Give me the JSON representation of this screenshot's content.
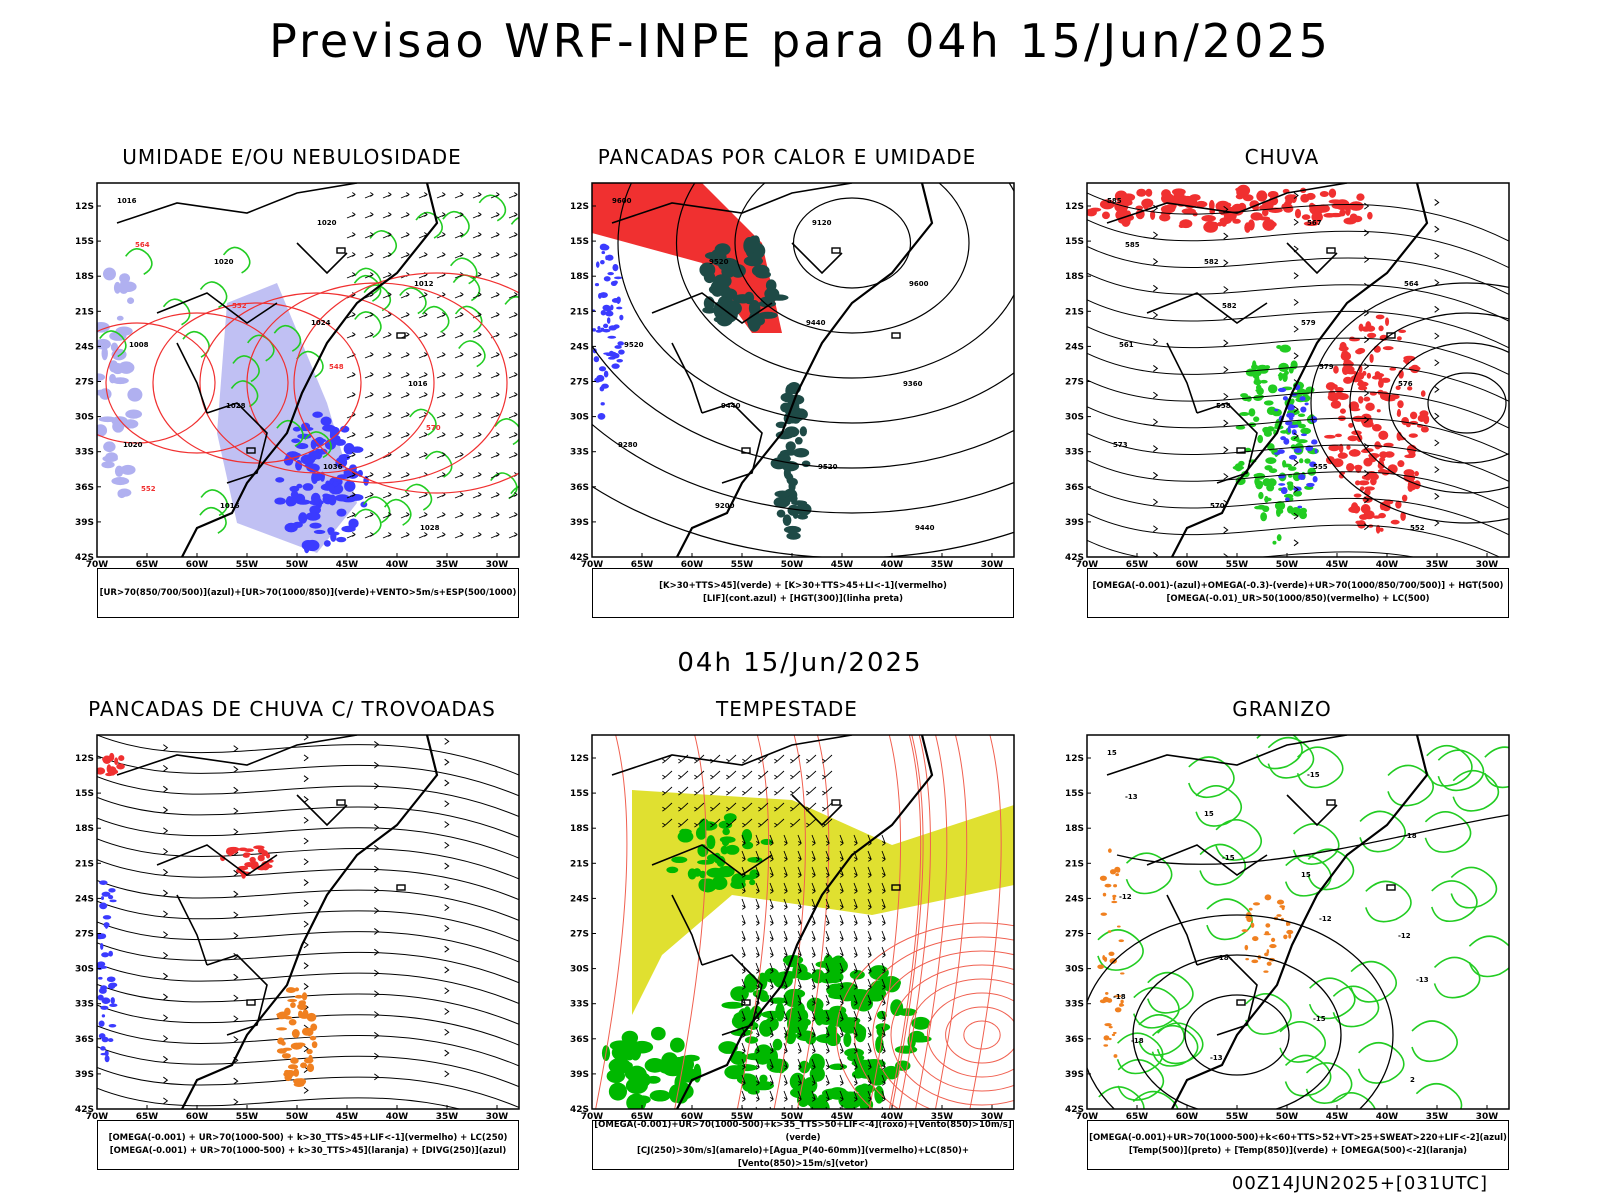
{
  "header": {
    "title": "Previsao WRF-INPE  para 04h 15/Jun/2025",
    "middle_time": "04h 15/Jun/2025",
    "footer": "00Z14JUN2025+[031UTC]"
  },
  "axes": {
    "lat_labels": [
      "12S",
      "15S",
      "18S",
      "21S",
      "24S",
      "27S",
      "30S",
      "33S",
      "36S",
      "39S",
      "42S"
    ],
    "lon_labels": [
      "70W",
      "65W",
      "60W",
      "55W",
      "50W",
      "45W",
      "40W",
      "35W",
      "30W"
    ]
  },
  "panels": [
    {
      "title": "UMIDADE E/OU NEBULOSIDADE",
      "legend": [
        "[UR>70(850/700/500)](azul)+[UR>70(1000/850)](verde)+VENTO>5m/s+ESP(500/1000)"
      ],
      "contour_labels": [
        "1016",
        "1020",
        "1024",
        "1016",
        "1020",
        "1016",
        "1020",
        "1012",
        "1008",
        "1028",
        "1036",
        "1028",
        "564",
        "552",
        "548",
        "570",
        "552"
      ]
    },
    {
      "title": "PANCADAS POR CALOR E UMIDADE",
      "legend": [
        "[K>30+TTS>45](verde) + [K>30+TTS>45+LI<-1](vermelho)",
        "[LIF](cont.azul) + [HGT(300)](linha preta)"
      ],
      "contour_labels": [
        "9600",
        "9520",
        "9440",
        "9360",
        "9280",
        "9200",
        "9120",
        "9600",
        "9520",
        "9440",
        "9520",
        "9440"
      ]
    },
    {
      "title": "CHUVA",
      "legend": [
        "[OMEGA(-0.001)-(azul)+OMEGA(-0.3)-(verde)+UR>70(1000/850/700/500)] + HGT(500)",
        "[OMEGA(-0.01)_UR>50(1000/850)(vermelho) + LC(500)"
      ],
      "contour_labels": [
        "585",
        "582",
        "579",
        "576",
        "573",
        "570",
        "567",
        "564",
        "561",
        "558",
        "555",
        "552",
        "585",
        "582",
        "579"
      ]
    },
    {
      "title": "PANCADAS DE CHUVA C/ TROVOADAS",
      "legend": [
        "[OMEGA(-0.001) + UR>70(1000-500) + k>30_TTS>45+LIF<-1](vermelho) + LC(250)",
        "[OMEGA(-0.001) + UR>70(1000-500) + k>30_TTS>45](laranja) + [DIVG(250)](azul)"
      ],
      "contour_labels": []
    },
    {
      "title": "TEMPESTADE",
      "legend": [
        "[OMEGA(-0.001)+UR>70(1000-500)+k>35_TTS>50+LIF<-4](roxo)+[Vento(850)>10m/s](verde)",
        "[CJ(250)>30m/s](amarelo)+[Agua_P(40-60mm)](vermelho)+LC(850)+[Vento(850)>15m/s](vetor)"
      ],
      "contour_labels": []
    },
    {
      "title": "GRANIZO",
      "legend": [
        "[OMEGA(-0.001)+UR>70(1000-500)+k<60+TTS>52+VT>25+SWEAT>220+LIF<-2](azul)",
        "[Temp(500)](preto) + [Temp(850)](verde) + [OMEGA(500)<-2](laranja)"
      ],
      "contour_labels": [
        "15",
        "15",
        "15",
        "-12",
        "-18",
        "-13",
        "-15",
        "-18",
        "-12",
        "-18",
        "-15",
        "2",
        "-13",
        "-15",
        "-12",
        "-13",
        "-18"
      ]
    }
  ],
  "colors": {
    "blue": "#3b3bff",
    "lightblue": "#b0b0f0",
    "green": "#22cc22",
    "brightgreen": "#00b800",
    "red": "#f03030",
    "darkteal": "#1e4a46",
    "orange": "#f08020",
    "yellow": "#e0e030",
    "salmon": "#f06050"
  }
}
